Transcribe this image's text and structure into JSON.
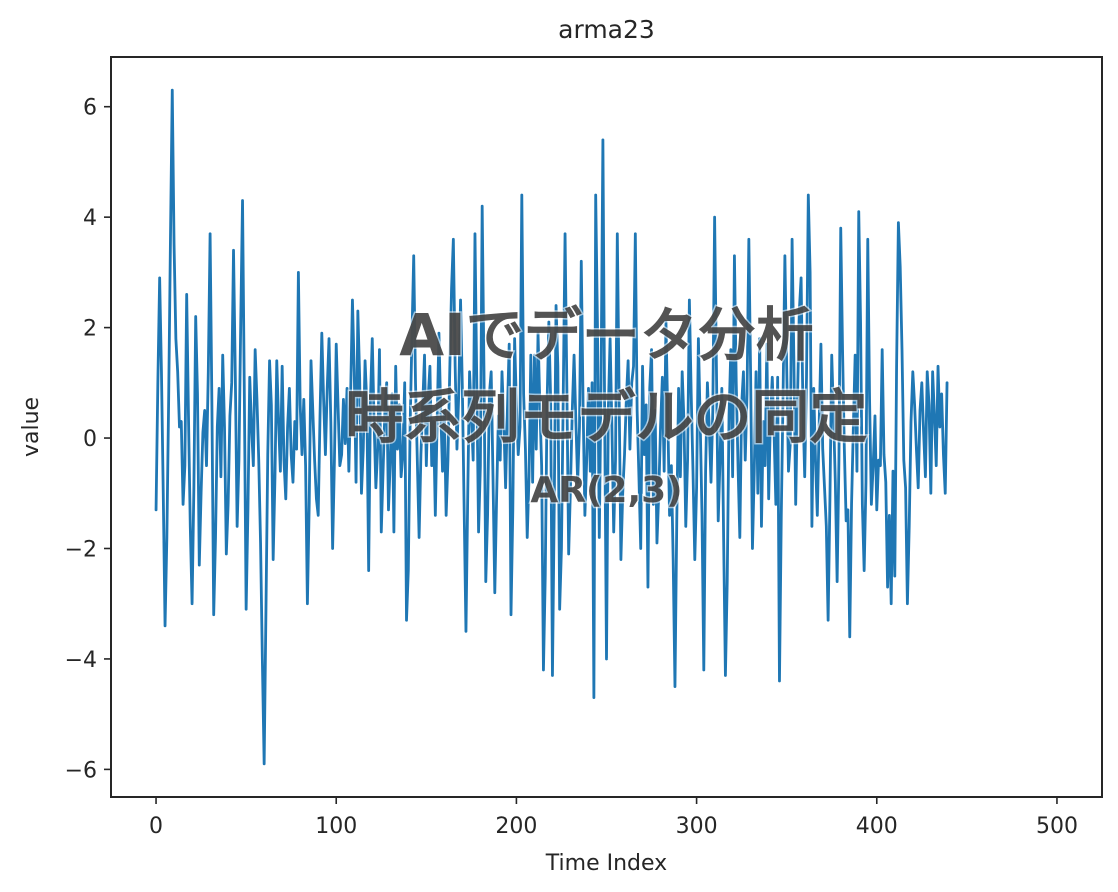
{
  "overlay": {
    "line1": "AIでデータ分析",
    "line2": "時系列モデルの同定",
    "line3": "AR(2,3)"
  },
  "colors": {
    "series": "#1f77b4",
    "axes": "#262626"
  },
  "chart_data": {
    "type": "line",
    "title": "arma23",
    "xlabel": "Time Index",
    "ylabel": "value",
    "xlim": [
      -25,
      525
    ],
    "ylim": [
      -6.5,
      6.9
    ],
    "xticks": [
      0,
      100,
      200,
      300,
      400,
      500
    ],
    "yticks": [
      -6,
      -4,
      -2,
      0,
      2,
      4,
      6
    ],
    "xtick_labels": [
      "0",
      "100",
      "200",
      "300",
      "400",
      "500"
    ],
    "ytick_labels": [
      "−6",
      "−4",
      "−2",
      "0",
      "2",
      "4",
      "6"
    ],
    "grid": false,
    "series": [
      {
        "x_start": 0,
        "x_step": 1,
        "values": [
          -1.3,
          1.0,
          2.9,
          1.2,
          -1.0,
          -3.4,
          -1.8,
          0.7,
          3.6,
          6.3,
          3.5,
          1.8,
          1.2,
          0.2,
          0.3,
          -1.2,
          -0.5,
          2.6,
          0.4,
          -1.6,
          -3.0,
          -0.9,
          2.2,
          0.8,
          -2.3,
          -1.0,
          0.1,
          0.5,
          -0.5,
          1.2,
          3.7,
          0.6,
          -3.2,
          -1.8,
          0.2,
          0.9,
          -0.7,
          1.5,
          0.2,
          -2.1,
          -1.2,
          0.4,
          1.0,
          3.4,
          1.1,
          -1.6,
          -0.4,
          2.1,
          4.3,
          0.8,
          -3.1,
          -1.3,
          1.1,
          0.2,
          -0.5,
          1.6,
          0.7,
          -0.4,
          -1.9,
          -4.0,
          -5.9,
          -3.1,
          -0.3,
          1.4,
          0.6,
          -2.2,
          -0.7,
          1.4,
          0.3,
          -0.6,
          1.3,
          -0.4,
          -1.1,
          0.2,
          0.9,
          -0.3,
          -0.8,
          0.3,
          -0.2,
          3.0,
          0.6,
          -0.3,
          0.7,
          -0.5,
          -3.0,
          -1.2,
          1.4,
          0.5,
          -0.4,
          -1.1,
          -1.4,
          0.4,
          1.9,
          0.7,
          -0.3,
          0.9,
          1.8,
          0.3,
          -2.0,
          -0.4,
          1.7,
          0.6,
          -0.5,
          -0.3,
          0.7,
          -0.1,
          0.9,
          -0.6,
          0.8,
          2.5,
          1.2,
          -0.8,
          2.3,
          1.1,
          -1.0,
          -0.2,
          1.4,
          0.6,
          -2.4,
          0.7,
          1.8,
          0.3,
          -0.9,
          -0.2,
          1.6,
          -1.7,
          -0.6,
          0.5,
          1.0,
          -1.3,
          -0.4,
          0.8,
          -1.7,
          1.3,
          -0.2,
          0.6,
          -0.7,
          -0.3,
          1.0,
          -3.3,
          -2.4,
          0.2,
          1.8,
          3.3,
          1.0,
          -0.4,
          -1.8,
          -0.3,
          0.6,
          1.5,
          -0.5,
          0.7,
          1.3,
          -0.5,
          0.3,
          -1.4,
          0.3,
          1.9,
          0.5,
          -0.6,
          0.5,
          -1.4,
          -0.4,
          1.2,
          2.7,
          3.6,
          1.3,
          -0.2,
          0.8,
          2.5,
          0.9,
          -1.3,
          -3.5,
          -1.0,
          1.2,
          0.4,
          -0.4,
          3.7,
          1.0,
          -1.7,
          -0.5,
          4.2,
          1.2,
          -2.6,
          -1.4,
          0.8,
          1.2,
          -0.7,
          -2.8,
          -1.1,
          0.4,
          -0.4,
          1.2,
          0.3,
          -0.9,
          0.5,
          1.7,
          -3.2,
          -1.3,
          1.8,
          0.6,
          -0.3,
          0.2,
          4.4,
          0.8,
          -0.2,
          -1.8,
          -0.7,
          1.5,
          -0.8,
          1.5,
          -0.2,
          1.9,
          0.6,
          -0.5,
          -4.2,
          -2.5,
          0.6,
          2.1,
          0.7,
          -4.3,
          -1.2,
          2.4,
          1.3,
          -3.1,
          -2.0,
          0.8,
          3.7,
          0.9,
          -2.1,
          -0.9,
          0.5,
          1.5,
          0.3,
          -0.8,
          0.2,
          3.2,
          0.6,
          -1.4,
          -0.4,
          0.9,
          -0.6,
          1.0,
          -4.7,
          4.4,
          2.0,
          -1.8,
          1.1,
          5.4,
          0.3,
          -4.0,
          0.5,
          1.8,
          0.2,
          -1.7,
          -0.4,
          3.7,
          0.8,
          -2.2,
          -1.0,
          -0.3,
          0.7,
          1.4,
          -0.2,
          1.0,
          1.3,
          3.7,
          0.5,
          -0.7,
          -2.0,
          1.3,
          -0.3,
          0.6,
          -2.7,
          0.9,
          1.6,
          -1.2,
          0.5,
          -1.9,
          -1.0,
          0.2,
          1.1,
          -0.6,
          2.1,
          0.4,
          -1.4,
          -0.5,
          -2.2,
          -4.5,
          -1.5,
          0.9,
          -0.7,
          1.2,
          0.3,
          -1.6,
          -0.4,
          2.5,
          0.8,
          -0.6,
          -2.2,
          -0.9,
          1.8,
          0.3,
          -1.4,
          -4.2,
          -0.6,
          1.0,
          0.2,
          -0.8,
          0.5,
          4.0,
          1.3,
          -1.5,
          -0.4,
          0.9,
          -1.8,
          -4.3,
          -2.6,
          0.4,
          1.6,
          -0.7,
          3.3,
          1.0,
          -0.5,
          -1.8,
          0.6,
          1.2,
          -0.4,
          0.8,
          3.6,
          1.1,
          -2.0,
          -0.6,
          1.2,
          -1.0,
          1.8,
          -1.6,
          0.3,
          -0.5,
          1.7,
          -1.1,
          0.4,
          1.1,
          0.1,
          -1.2,
          1.1,
          -4.4,
          -1.4,
          0.8,
          3.3,
          1.3,
          -0.6,
          -0.1,
          3.6,
          1.4,
          -1.2,
          0.7,
          2.3,
          2.9,
          0.6,
          -0.7,
          1.1,
          4.4,
          3.0,
          -1.6,
          0.9,
          -0.4,
          -1.4,
          0.2,
          1.7,
          -0.2,
          -0.9,
          -1.6,
          -3.3,
          -1.1,
          1.5,
          0.4,
          -0.8,
          -2.6,
          -0.4,
          3.8,
          1.6,
          -0.2,
          -1.5,
          -1.3,
          -3.6,
          -1.2,
          0.2,
          1.5,
          -0.6,
          4.1,
          2.1,
          -1.2,
          -2.4,
          -0.8,
          3.6,
          0.7,
          -1.2,
          -0.5,
          0.4,
          -1.3,
          -0.4,
          -0.5,
          1.6,
          -0.3,
          -0.8,
          -2.7,
          -1.4,
          -3.0,
          -0.6,
          -2.5,
          1.3,
          3.9,
          3.1,
          1.6,
          -0.4,
          -0.9,
          -3.0,
          -1.6,
          0.3,
          1.2,
          0.6,
          -0.2,
          -0.9,
          0.5,
          1.0,
          0.1,
          -0.7,
          1.2,
          0.6,
          -1.0,
          1.2,
          0.4,
          -0.5,
          1.3,
          0.2,
          0.8,
          -0.3,
          -1.0,
          1.0
        ]
      }
    ]
  }
}
